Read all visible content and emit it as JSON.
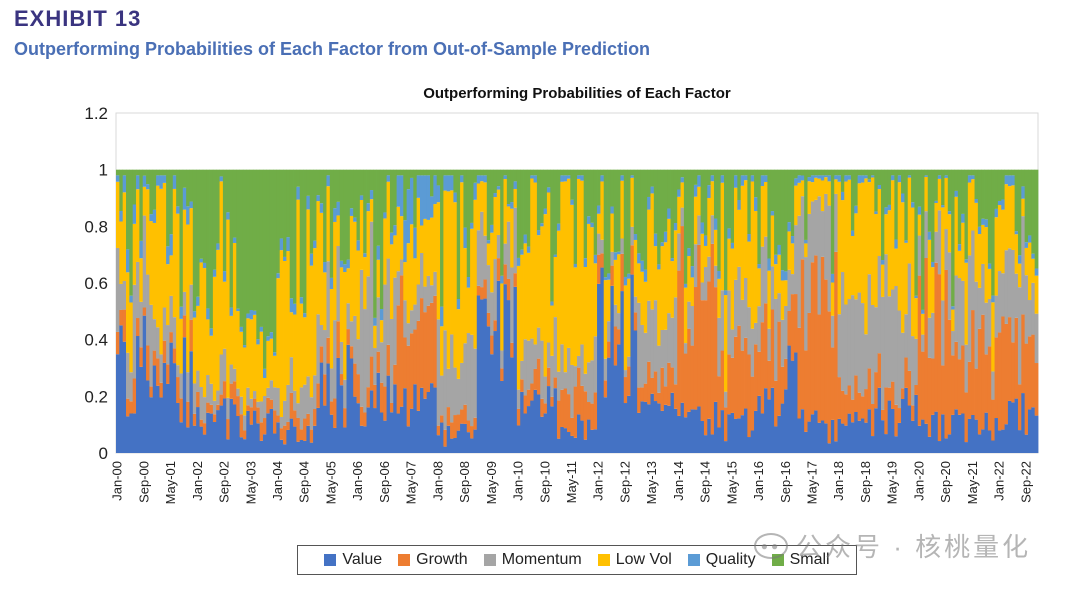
{
  "header": {
    "exhibit": "EXHIBIT 13",
    "subtitle": "Outperforming Probabilities of Each Factor from Out-of-Sample Prediction"
  },
  "colors": {
    "exhibit": "#3a3480",
    "subtitle": "#4a6fb5",
    "Value": "#4472c4",
    "Growth": "#ed7d31",
    "Momentum": "#a5a5a5",
    "Low Vol": "#ffc000",
    "Quality": "#5b9bd5",
    "Small": "#70ad47"
  },
  "watermark": {
    "text": "公众号 · 核桃量化"
  },
  "chart_data": {
    "type": "stacked-bar",
    "title": "Outperforming Probabilities of Each Factor",
    "ylim": [
      0,
      1.2
    ],
    "yticks": [
      "0",
      "0.2",
      "0.4",
      "0.6",
      "0.8",
      "1",
      "1.2"
    ],
    "period": {
      "start": "Jan-00",
      "end": "Dec-22",
      "frequency": "monthly",
      "months": 276
    },
    "xtick_labels": [
      "Jan-00",
      "Sep-00",
      "May-01",
      "Jan-02",
      "Sep-02",
      "May-03",
      "Jan-04",
      "Sep-04",
      "May-05",
      "Jan-06",
      "Sep-06",
      "May-07",
      "Jan-08",
      "Sep-08",
      "May-09",
      "Jan-10",
      "Sep-10",
      "May-11",
      "Jan-12",
      "Sep-12",
      "May-13",
      "Jan-14",
      "Sep-14",
      "May-15",
      "Jan-16",
      "Sep-16",
      "May-17",
      "Jan-18",
      "Sep-18",
      "May-19",
      "Jan-20",
      "Sep-20",
      "May-21",
      "Jan-22",
      "Sep-22"
    ],
    "series_order": [
      "Value",
      "Growth",
      "Momentum",
      "Low Vol",
      "Quality",
      "Small"
    ],
    "legend": [
      "Value",
      "Growth",
      "Momentum",
      "Low Vol",
      "Quality",
      "Small"
    ],
    "regimes": [
      {
        "months": 12,
        "Value": 0.3,
        "Growth": 0.08,
        "Momentum": 0.22,
        "Low Vol": 0.25,
        "Quality": 0.05
      },
      {
        "months": 12,
        "Value": 0.25,
        "Growth": 0.07,
        "Momentum": 0.1,
        "Low Vol": 0.4,
        "Quality": 0.05
      },
      {
        "months": 12,
        "Value": 0.12,
        "Growth": 0.05,
        "Momentum": 0.1,
        "Low Vol": 0.42,
        "Quality": 0.03
      },
      {
        "months": 12,
        "Value": 0.1,
        "Growth": 0.05,
        "Momentum": 0.05,
        "Low Vol": 0.18,
        "Quality": 0.02
      },
      {
        "months": 12,
        "Value": 0.08,
        "Growth": 0.06,
        "Momentum": 0.1,
        "Low Vol": 0.45,
        "Quality": 0.03
      },
      {
        "months": 12,
        "Value": 0.25,
        "Growth": 0.08,
        "Momentum": 0.2,
        "Low Vol": 0.25,
        "Quality": 0.03
      },
      {
        "months": 12,
        "Value": 0.2,
        "Growth": 0.08,
        "Momentum": 0.3,
        "Low Vol": 0.2,
        "Quality": 0.03
      },
      {
        "months": 12,
        "Value": 0.15,
        "Growth": 0.35,
        "Momentum": 0.1,
        "Low Vol": 0.25,
        "Quality": 0.12
      },
      {
        "months": 12,
        "Value": 0.08,
        "Growth": 0.05,
        "Momentum": 0.3,
        "Low Vol": 0.45,
        "Quality": 0.05
      },
      {
        "months": 12,
        "Value": 0.45,
        "Growth": 0.05,
        "Momentum": 0.18,
        "Low Vol": 0.15,
        "Quality": 0.02
      },
      {
        "months": 12,
        "Value": 0.15,
        "Growth": 0.08,
        "Momentum": 0.15,
        "Low Vol": 0.4,
        "Quality": 0.02
      },
      {
        "months": 12,
        "Value": 0.1,
        "Growth": 0.12,
        "Momentum": 0.12,
        "Low Vol": 0.45,
        "Quality": 0.02
      },
      {
        "months": 12,
        "Value": 0.45,
        "Growth": 0.1,
        "Momentum": 0.05,
        "Low Vol": 0.2,
        "Quality": 0.02
      },
      {
        "months": 12,
        "Value": 0.15,
        "Growth": 0.1,
        "Momentum": 0.2,
        "Low Vol": 0.25,
        "Quality": 0.03
      },
      {
        "months": 12,
        "Value": 0.12,
        "Growth": 0.45,
        "Momentum": 0.1,
        "Low Vol": 0.15,
        "Quality": 0.03
      },
      {
        "months": 12,
        "Value": 0.1,
        "Growth": 0.2,
        "Momentum": 0.15,
        "Low Vol": 0.35,
        "Quality": 0.03
      },
      {
        "months": 12,
        "Value": 0.25,
        "Growth": 0.25,
        "Momentum": 0.2,
        "Low Vol": 0.15,
        "Quality": 0.03
      },
      {
        "months": 12,
        "Value": 0.1,
        "Growth": 0.45,
        "Momentum": 0.3,
        "Low Vol": 0.08,
        "Quality": 0.02
      },
      {
        "months": 12,
        "Value": 0.1,
        "Growth": 0.1,
        "Momentum": 0.3,
        "Low Vol": 0.4,
        "Quality": 0.02
      },
      {
        "months": 12,
        "Value": 0.15,
        "Growth": 0.1,
        "Momentum": 0.35,
        "Low Vol": 0.3,
        "Quality": 0.02
      },
      {
        "months": 12,
        "Value": 0.1,
        "Growth": 0.45,
        "Momentum": 0.15,
        "Low Vol": 0.2,
        "Quality": 0.02
      },
      {
        "months": 12,
        "Value": 0.1,
        "Growth": 0.3,
        "Momentum": 0.25,
        "Low Vol": 0.2,
        "Quality": 0.02
      },
      {
        "months": 12,
        "Value": 0.15,
        "Growth": 0.25,
        "Momentum": 0.3,
        "Low Vol": 0.15,
        "Quality": 0.03
      }
    ]
  }
}
